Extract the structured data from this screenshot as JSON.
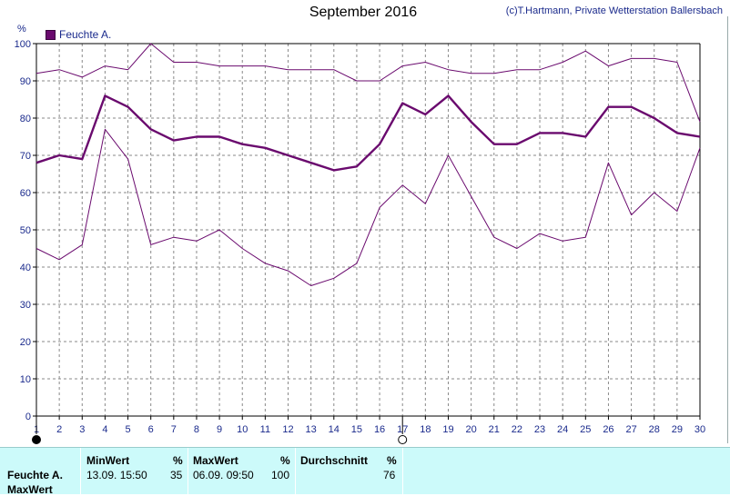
{
  "title": "September 2016",
  "credit": "(c)T.Hartmann, Private Wetterstation Ballersbach",
  "unit_label": "%",
  "colors": {
    "series": "#6a0a6e",
    "axis_text": "#1a2a8c",
    "grid": "#8a8a8a",
    "stats_bg": "#ccfafa"
  },
  "chart_data": {
    "type": "line",
    "x": [
      1,
      2,
      3,
      4,
      5,
      6,
      7,
      8,
      9,
      10,
      11,
      12,
      13,
      14,
      15,
      16,
      17,
      18,
      19,
      20,
      21,
      22,
      23,
      24,
      25,
      26,
      27,
      28,
      29,
      30
    ],
    "ylim": [
      0,
      100
    ],
    "yticks": [
      0,
      10,
      20,
      30,
      40,
      50,
      60,
      70,
      80,
      90,
      100
    ],
    "grid": true,
    "legend": "top-left",
    "legend_entries": [
      "Feuchte A."
    ],
    "series": [
      {
        "name": "Feuchte A.",
        "kind": "average",
        "values": [
          68,
          70,
          69,
          86,
          83,
          77,
          74,
          75,
          75,
          73,
          72,
          70,
          68,
          66,
          67,
          73,
          84,
          81,
          86,
          79,
          73,
          73,
          76,
          76,
          75,
          83,
          83,
          80,
          76,
          75
        ]
      },
      {
        "kind": "max",
        "values": [
          92,
          93,
          91,
          94,
          93,
          100,
          95,
          95,
          94,
          94,
          94,
          93,
          93,
          93,
          90,
          90,
          94,
          95,
          93,
          92,
          92,
          93,
          93,
          95,
          98,
          94,
          96,
          96,
          95,
          79
        ]
      },
      {
        "kind": "min",
        "values": [
          45,
          42,
          46,
          77,
          69,
          46,
          48,
          47,
          50,
          45,
          41,
          39,
          35,
          37,
          41,
          56,
          62,
          57,
          70,
          59,
          48,
          45,
          49,
          47,
          48,
          68,
          54,
          60,
          55,
          72
        ]
      }
    ],
    "markers": [
      {
        "x": 1,
        "style": "filled"
      },
      {
        "x": 17,
        "style": "open"
      }
    ]
  },
  "stats": {
    "row_label": "Feuchte A.",
    "row_label2": "MaxWert",
    "min_header": "MinWert",
    "min_unit": "%",
    "min_date": "13.09.  15:50",
    "min_value": "35",
    "max_header": "MaxWert",
    "max_unit": "%",
    "max_date": "06.09.  09:50",
    "max_value": "100",
    "avg_header": "Durchschnitt",
    "avg_unit": "%",
    "avg_value": "76"
  }
}
